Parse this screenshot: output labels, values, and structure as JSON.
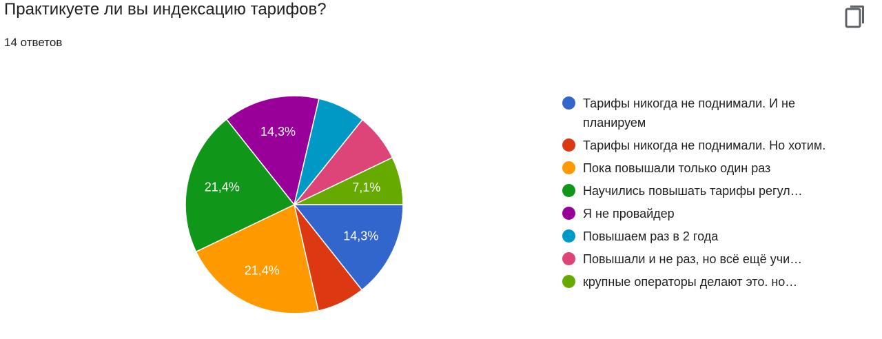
{
  "header": {
    "title": "Практикуете ли вы индексацию тарифов?",
    "subtitle": "14 ответов"
  },
  "chart_data": {
    "type": "pie",
    "categories": [
      "Тарифы никогда не поднимали. И не планируем",
      "Тарифы никогда не поднимали. Но хотим.",
      "Пока повышали только один раз",
      "Научились повышать тарифы регул…",
      "Я не провайдер",
      "Повышаем раз в 2 года",
      "Повышали и не раз, но всё ещё учи…",
      "крупные операторы делают это. но…"
    ],
    "values": [
      14.3,
      7.1,
      21.4,
      21.4,
      14.3,
      7.1,
      7.1,
      7.1
    ],
    "value_labels": [
      "14,3%",
      null,
      "21,4%",
      "21,4%",
      "14,3%",
      null,
      null,
      "7,1%"
    ],
    "colors": [
      "#3366cc",
      "#dc3912",
      "#ff9900",
      "#109618",
      "#990099",
      "#0099c6",
      "#dd4477",
      "#66aa00"
    ]
  }
}
